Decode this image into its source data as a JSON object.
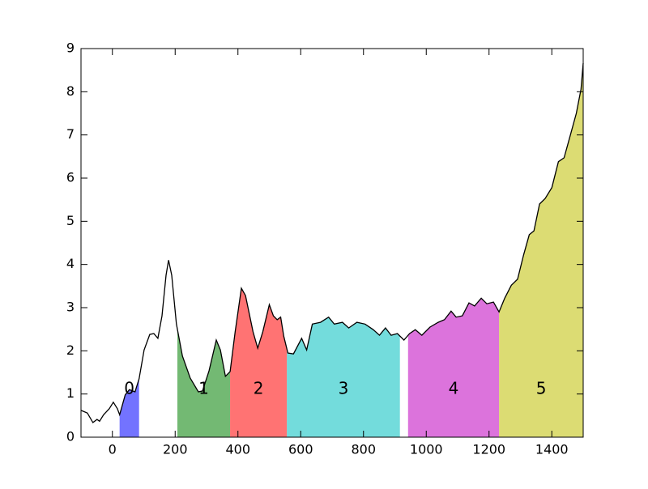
{
  "chart_data": {
    "type": "line",
    "x": [
      -100,
      -80,
      -62,
      -49,
      -41,
      -28,
      -10,
      3,
      16,
      23,
      41,
      54,
      72,
      85,
      101,
      119,
      132,
      145,
      158,
      171,
      179,
      189,
      204,
      223,
      248,
      274,
      287,
      308,
      331,
      344,
      360,
      375,
      391,
      411,
      424,
      448,
      463,
      479,
      500,
      513,
      525,
      536,
      546,
      559,
      577,
      603,
      619,
      637,
      663,
      689,
      707,
      733,
      753,
      779,
      805,
      831,
      851,
      870,
      888,
      908,
      929,
      947,
      965,
      986,
      1012,
      1038,
      1058,
      1079,
      1095,
      1115,
      1136,
      1154,
      1175,
      1193,
      1214,
      1232,
      1250,
      1271,
      1291,
      1310,
      1328,
      1343,
      1361,
      1379,
      1400,
      1421,
      1439,
      1457,
      1478,
      1493,
      1500
    ],
    "series": [
      {
        "color": "#000000",
        "values": [
          0.62,
          0.56,
          0.34,
          0.41,
          0.37,
          0.52,
          0.66,
          0.81,
          0.66,
          0.52,
          0.98,
          1.1,
          1.05,
          1.35,
          2.02,
          2.38,
          2.4,
          2.29,
          2.81,
          3.75,
          4.1,
          3.75,
          2.62,
          1.88,
          1.37,
          1.05,
          1.07,
          1.54,
          2.25,
          2.02,
          1.41,
          1.52,
          2.44,
          3.45,
          3.28,
          2.44,
          2.06,
          2.44,
          3.07,
          2.81,
          2.72,
          2.78,
          2.34,
          1.95,
          1.93,
          2.29,
          2.02,
          2.62,
          2.66,
          2.78,
          2.62,
          2.66,
          2.53,
          2.66,
          2.62,
          2.49,
          2.36,
          2.53,
          2.36,
          2.4,
          2.25,
          2.4,
          2.49,
          2.36,
          2.55,
          2.66,
          2.72,
          2.92,
          2.78,
          2.81,
          3.11,
          3.04,
          3.22,
          3.09,
          3.13,
          2.9,
          3.22,
          3.52,
          3.66,
          4.22,
          4.69,
          4.78,
          5.4,
          5.53,
          5.78,
          6.38,
          6.47,
          6.94,
          7.5,
          8.06,
          8.66
        ]
      }
    ],
    "regions": [
      {
        "label": "0",
        "start": 23,
        "end": 85,
        "color": "#0000ff"
      },
      {
        "label": "1",
        "start": 207,
        "end": 375,
        "color": "#008000"
      },
      {
        "label": "2",
        "start": 375,
        "end": 556,
        "color": "#ff0000"
      },
      {
        "label": "3",
        "start": 556,
        "end": 916,
        "color": "#00bfbf"
      },
      {
        "label": "4",
        "start": 942,
        "end": 1232,
        "color": "#bf00bf"
      },
      {
        "label": "5",
        "start": 1232,
        "end": 1500,
        "color": "#bfbf00"
      }
    ],
    "xlim": [
      -100,
      1500
    ],
    "xticks": [
      0,
      200,
      400,
      600,
      800,
      1000,
      1200,
      1400
    ],
    "ylim": [
      0,
      9
    ],
    "yticks": [
      0,
      1,
      2,
      3,
      4,
      5,
      6,
      7,
      8,
      9
    ]
  }
}
